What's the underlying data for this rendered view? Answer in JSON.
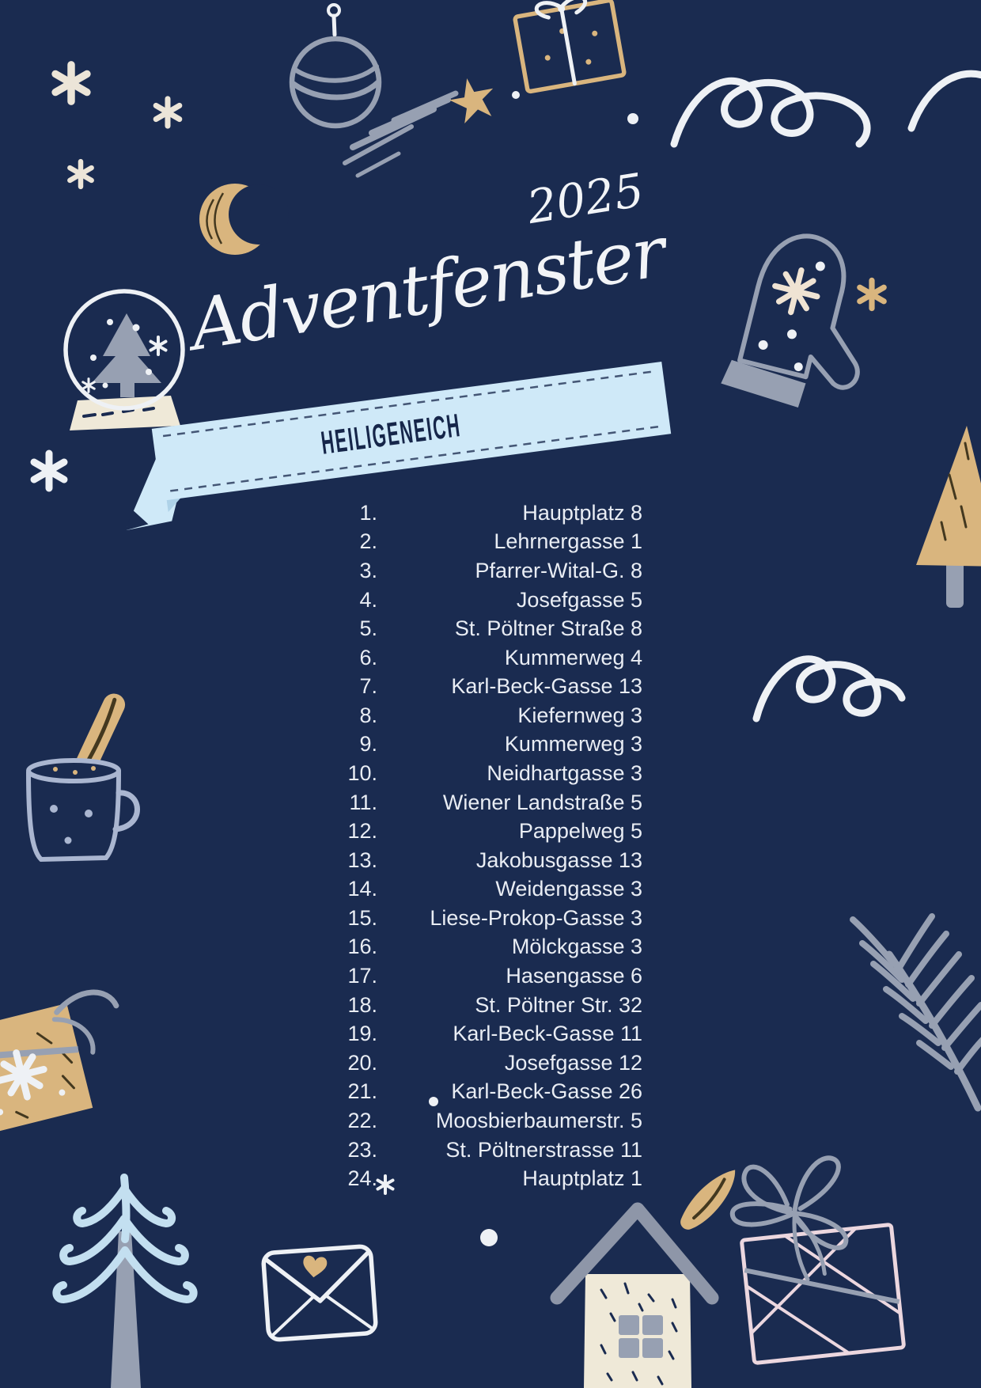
{
  "poster": {
    "year": "2025",
    "title": "Adventfenster",
    "banner_label": "HEILIGENEICH"
  },
  "list": {
    "items": [
      {
        "num": "1.",
        "address": "Hauptplatz 8"
      },
      {
        "num": "2.",
        "address": "Lehrnergasse 1"
      },
      {
        "num": "3.",
        "address": "Pfarrer-Wital-G. 8"
      },
      {
        "num": "4.",
        "address": "Josefgasse 5"
      },
      {
        "num": "5.",
        "address": "St. Pöltner Straße 8"
      },
      {
        "num": "6.",
        "address": "Kummerweg 4"
      },
      {
        "num": "7.",
        "address": "Karl-Beck-Gasse 13"
      },
      {
        "num": "8.",
        "address": "Kiefernweg 3"
      },
      {
        "num": "9.",
        "address": "Kummerweg 3"
      },
      {
        "num": "10.",
        "address": "Neidhartgasse 3"
      },
      {
        "num": "11.",
        "address": "Wiener Landstraße 5"
      },
      {
        "num": "12.",
        "address": "Pappelweg 5"
      },
      {
        "num": "13.",
        "address": "Jakobusgasse 13"
      },
      {
        "num": "14.",
        "address": "Weidengasse 3"
      },
      {
        "num": "15.",
        "address": "Liese-Prokop-Gasse 3"
      },
      {
        "num": "16.",
        "address": "Mölckgasse 3"
      },
      {
        "num": "17.",
        "address": "Hasengasse 6"
      },
      {
        "num": "18.",
        "address": "St. Pöltner Str. 32"
      },
      {
        "num": "19.",
        "address": "Karl-Beck-Gasse 11"
      },
      {
        "num": "20.",
        "address": "Josefgasse 12"
      },
      {
        "num": "21.",
        "address": "Karl-Beck-Gasse 26"
      },
      {
        "num": "22.",
        "address": "Moosbierbaumerstr. 5"
      },
      {
        "num": "23.",
        "address": "St. Pöltnerstrasse 11"
      },
      {
        "num": "24.",
        "address": "Hauptplatz 1"
      }
    ]
  },
  "colors": {
    "background": "#1a2b50",
    "banner": "#cfe9f8",
    "banner_text": "#16264a",
    "list_text": "#e9edf4",
    "title_text": "#f2f4f7",
    "tan": "#d9b57e",
    "gray": "#97a0b2",
    "light_blue": "#c3dff0",
    "periwinkle": "#aab6d0",
    "cream": "#efe9d8",
    "pink": "#ecd7df",
    "white_ink": "#eef1f5"
  },
  "decorations": [
    "snowflake-sparkles",
    "bauble-ornament",
    "gift-box-top",
    "shooting-star",
    "crescent-moon",
    "mitten",
    "snow-globe",
    "tan-tree",
    "mug-with-cinnamon-stick",
    "swirl-squiggles",
    "gift-box-left",
    "pine-branch",
    "blue-tree",
    "envelope-with-heart",
    "house-with-smoke",
    "gift-box-bottom-right"
  ]
}
